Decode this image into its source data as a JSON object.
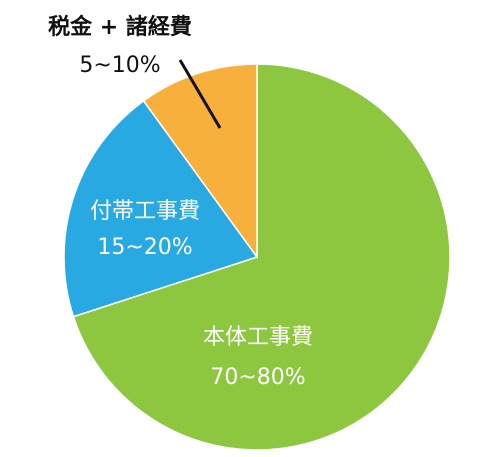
{
  "chart_data": {
    "type": "pie",
    "categories": [
      "本体工事費",
      "付帯工事費",
      "税金 + 諸経費"
    ],
    "values": [
      70,
      20,
      10
    ],
    "value_labels": [
      "70~80%",
      "15~20%",
      "5~10%"
    ],
    "colors": [
      "#8dc63f",
      "#29a9e1",
      "#f8b03c"
    ]
  }
}
